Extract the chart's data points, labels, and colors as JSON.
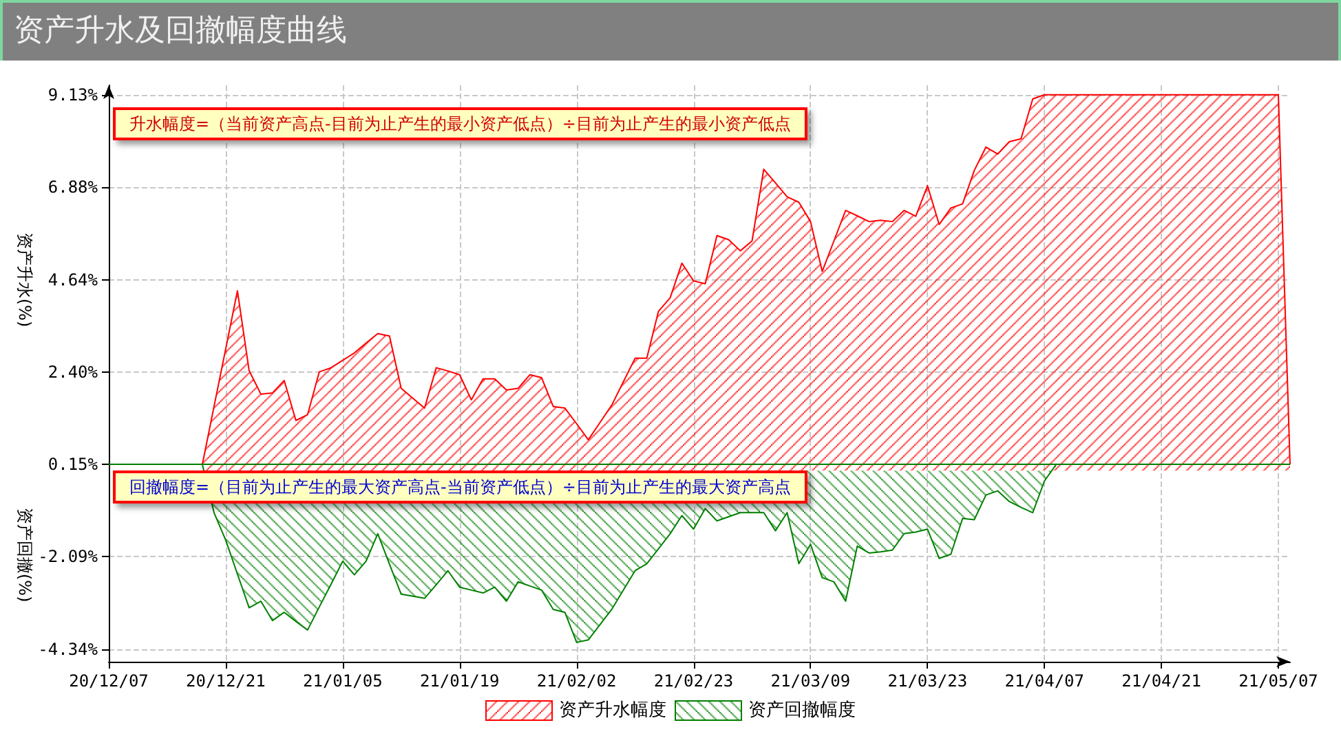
{
  "chart_data": {
    "type": "area",
    "title": "资产升水及回撤幅度曲线",
    "ylabel": "资产升水(%)",
    "annotations": [
      "升水幅度=（当前资产高点-目前为止产生的最小资产低点）÷目前为止产生的最小资产低点",
      "回撤幅度=（目前为止产生的最大资产高点-当前资产低点）÷目前为止产生的最大资产高点",
      "资产回撤(%)"
    ],
    "categories": [
      "20/12/07",
      null,
      null,
      null,
      null,
      null,
      null,
      null,
      null,
      null,
      "20/12/21",
      null,
      null,
      null,
      null,
      null,
      null,
      null,
      null,
      null,
      "21/01/05",
      null,
      null,
      null,
      null,
      null,
      null,
      null,
      null,
      null,
      "21/01/19",
      null,
      null,
      null,
      null,
      null,
      null,
      null,
      null,
      null,
      "21/02/02",
      null,
      null,
      null,
      null,
      null,
      null,
      null,
      null,
      null,
      "21/02/23",
      null,
      null,
      null,
      null,
      null,
      null,
      null,
      null,
      null,
      "21/03/09",
      null,
      null,
      null,
      null,
      null,
      null,
      null,
      null,
      null,
      "21/03/23",
      null,
      null,
      null,
      null,
      null,
      null,
      null,
      null,
      null,
      "21/04/07",
      null,
      null,
      null,
      null,
      null,
      null,
      null,
      null,
      null,
      "21/04/21",
      null,
      null,
      null,
      null,
      null,
      null,
      null,
      null,
      null,
      "21/05/07",
      null
    ],
    "ylim": [
      -4.64,
      9.36
    ],
    "yticks": [
      {
        "value": -4.34,
        "label": "-4.34%"
      },
      {
        "value": -2.09,
        "label": "-2.09%"
      },
      {
        "value": 0.15,
        "label": "0.15%"
      },
      {
        "value": 2.4,
        "label": "2.40%"
      },
      {
        "value": 4.64,
        "label": "4.64%"
      },
      {
        "value": 6.88,
        "label": "6.88%"
      },
      {
        "value": 9.13,
        "label": "9.13%"
      }
    ],
    "series": [
      {
        "name": "资产升水幅度",
        "color": "#ff0000",
        "values": [
          null,
          null,
          null,
          null,
          null,
          null,
          null,
          null,
          0.15,
          1.56,
          2.96,
          4.37,
          2.43,
          1.86,
          1.89,
          2.19,
          1.22,
          1.36,
          2.4,
          2.5,
          2.68,
          2.86,
          3.1,
          3.33,
          3.27,
          2.0,
          1.76,
          1.52,
          2.5,
          2.42,
          2.33,
          1.72,
          2.23,
          2.23,
          1.96,
          2.0,
          2.33,
          2.26,
          1.56,
          1.52,
          1.14,
          0.75,
          1.17,
          1.59,
          2.16,
          2.73,
          2.73,
          3.87,
          4.2,
          5.04,
          4.61,
          4.54,
          5.71,
          5.61,
          5.34,
          5.58,
          7.32,
          6.99,
          6.65,
          6.52,
          6.05,
          4.84,
          5.58,
          6.32,
          6.19,
          6.05,
          6.08,
          6.05,
          6.32,
          6.18,
          6.92,
          5.98,
          6.38,
          6.48,
          7.29,
          7.86,
          7.69,
          7.99,
          8.06,
          9.03,
          9.13,
          9.13,
          9.13,
          9.13,
          9.13,
          9.13,
          9.13,
          9.13,
          9.13,
          9.13,
          9.13,
          9.13,
          9.13,
          9.13,
          9.13,
          9.13,
          9.13,
          9.13,
          9.13,
          9.13,
          9.13,
          0.15
        ]
      },
      {
        "name": "资产回撤幅度",
        "color": "#008000",
        "values": [
          null,
          null,
          null,
          null,
          null,
          null,
          null,
          null,
          0.15,
          -1.02,
          -1.69,
          -2.51,
          -3.33,
          -3.17,
          -3.64,
          -3.44,
          -3.66,
          -3.87,
          -3.31,
          -2.76,
          -2.2,
          -2.53,
          -2.2,
          -1.53,
          -2.27,
          -3.0,
          -3.05,
          -3.1,
          -2.77,
          -2.43,
          -2.83,
          -2.9,
          -2.97,
          -2.83,
          -3.17,
          -2.7,
          -2.8,
          -2.9,
          -3.37,
          -3.44,
          -4.17,
          -4.11,
          -3.74,
          -3.37,
          -2.9,
          -2.43,
          -2.26,
          -1.9,
          -1.53,
          -1.09,
          -1.42,
          -0.92,
          -1.22,
          -1.12,
          -1.02,
          -1.02,
          -1.02,
          -1.46,
          -1.02,
          -2.26,
          -1.79,
          -2.6,
          -2.7,
          -3.17,
          -1.83,
          -2.0,
          -1.97,
          -1.93,
          -1.53,
          -1.49,
          -1.42,
          -2.13,
          -2.03,
          -1.16,
          -1.19,
          -0.59,
          -0.49,
          -0.75,
          -0.89,
          -1.02,
          -0.25,
          0.15,
          null,
          null,
          null,
          null,
          null,
          null,
          null,
          null,
          null,
          null,
          null,
          null,
          null,
          null,
          null,
          null,
          null,
          null,
          null,
          null
        ]
      }
    ],
    "ref_lines": [
      {
        "axis": "y",
        "value": 0.15,
        "color": "#008000"
      }
    ],
    "grid": true,
    "legend": "bottom",
    "marker": "none",
    "line_style": "solid"
  }
}
